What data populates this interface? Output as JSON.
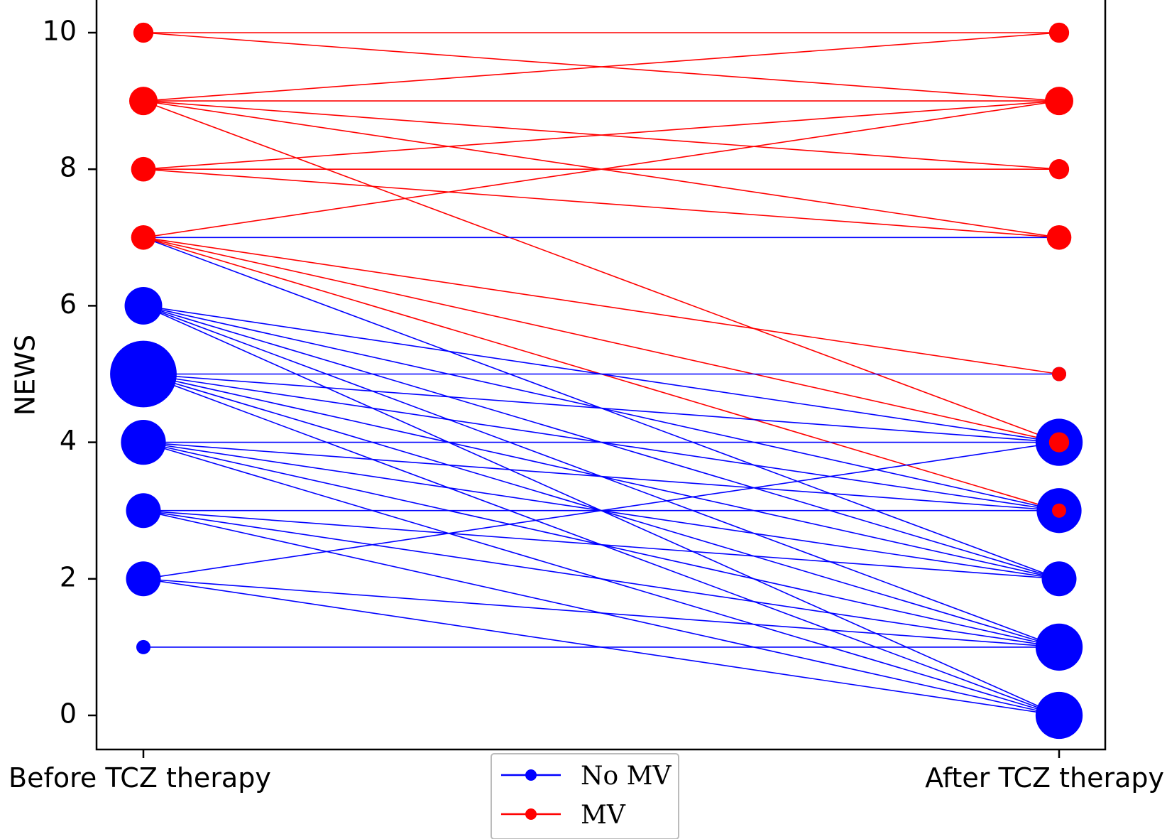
{
  "chart_data": {
    "type": "line",
    "ylabel": "NEWS",
    "ylim": [
      -0.5,
      10.5
    ],
    "yticks": [
      0,
      2,
      4,
      6,
      8,
      10
    ],
    "categories": [
      "Before TCZ therapy",
      "After TCZ therapy"
    ],
    "grid": false,
    "legend": {
      "position": "bottom-center",
      "entries": [
        {
          "label": "No MV",
          "color": "#0000ff"
        },
        {
          "label": "MV",
          "color": "#ff0000"
        }
      ]
    },
    "series": [
      {
        "name": "MV",
        "color": "#ff0000",
        "pairs": [
          [
            10,
            10
          ],
          [
            10,
            9
          ],
          [
            9,
            10
          ],
          [
            9,
            9
          ],
          [
            9,
            8
          ],
          [
            9,
            7
          ],
          [
            9,
            4
          ],
          [
            8,
            9
          ],
          [
            8,
            8
          ],
          [
            8,
            7
          ],
          [
            7,
            9
          ],
          [
            7,
            5
          ],
          [
            7,
            4
          ],
          [
            7,
            3
          ]
        ],
        "before_counts": {
          "10": 2,
          "9": 4,
          "8": 3,
          "7": 3
        },
        "after_counts": {
          "10": 2,
          "9": 4,
          "8": 2,
          "7": 3,
          "5": 1,
          "4": 2,
          "3": 1
        }
      },
      {
        "name": "No MV",
        "color": "#0000ff",
        "pairs": [
          [
            7,
            7
          ],
          [
            7,
            2
          ],
          [
            6,
            4
          ],
          [
            6,
            3
          ],
          [
            6,
            2
          ],
          [
            6,
            1
          ],
          [
            6,
            0
          ],
          [
            5,
            5
          ],
          [
            5,
            4
          ],
          [
            5,
            3
          ],
          [
            5,
            2
          ],
          [
            5,
            1
          ],
          [
            5,
            0
          ],
          [
            4,
            4
          ],
          [
            4,
            3
          ],
          [
            4,
            2
          ],
          [
            4,
            1
          ],
          [
            4,
            0
          ],
          [
            3,
            3
          ],
          [
            3,
            2
          ],
          [
            3,
            1
          ],
          [
            3,
            0
          ],
          [
            2,
            4
          ],
          [
            2,
            1
          ],
          [
            2,
            0
          ],
          [
            1,
            1
          ]
        ],
        "before_counts": {
          "7": 1,
          "6": 7,
          "5": 22,
          "4": 10,
          "3": 6,
          "2": 6,
          "1": 1
        },
        "after_counts": {
          "7": 1,
          "5": 1,
          "4": 11,
          "3": 10,
          "2": 6,
          "1": 11,
          "0": 11
        }
      }
    ]
  }
}
